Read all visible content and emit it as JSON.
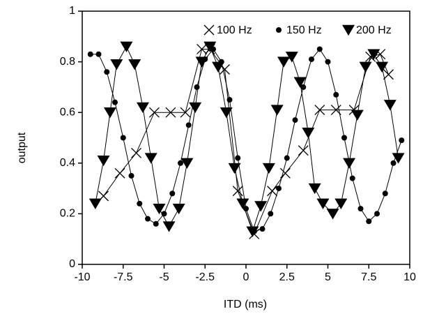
{
  "chart_data": {
    "type": "line",
    "xlabel": "ITD (ms)",
    "ylabel": "output",
    "xlim": [
      -10,
      10
    ],
    "xticks": [
      -10,
      -7.5,
      -5,
      -2.5,
      0,
      2.5,
      5,
      7.5,
      10
    ],
    "ylim": [
      0,
      1
    ],
    "yticks": [
      0,
      0.2,
      0.4,
      0.6,
      0.8,
      1
    ],
    "legend": "top-right",
    "series": [
      {
        "name": "100 Hz",
        "color": "#000000",
        "marker": "x",
        "x": [
          -8.7,
          -7.7,
          -6.7,
          -5.6,
          -4.6,
          -3.7,
          -2.7,
          -2.2,
          -1.3,
          -0.5,
          0.5,
          1.6,
          2.4,
          3.5,
          4.5,
          5.5,
          6.6,
          7.6,
          8.2,
          8.7
        ],
        "values": [
          0.27,
          0.36,
          0.44,
          0.6,
          0.6,
          0.6,
          0.85,
          0.85,
          0.77,
          0.29,
          0.12,
          0.29,
          0.36,
          0.45,
          0.61,
          0.61,
          0.61,
          0.82,
          0.83,
          0.75
        ]
      },
      {
        "name": "150 Hz",
        "color": "#000000",
        "marker": "o",
        "x": [
          -9.5,
          -9,
          -8.5,
          -8,
          -7.5,
          -7,
          -6.5,
          -6,
          -5.5,
          -5,
          -4.5,
          -4,
          -3.5,
          -3,
          -2.5,
          -2,
          -1.5,
          -1,
          -0.5,
          0,
          0.5,
          1,
          1.5,
          2,
          2.5,
          3,
          3.5,
          4,
          4.5,
          5,
          5.5,
          6,
          6.5,
          7,
          7.5,
          8,
          8.5,
          9,
          9.5
        ],
        "values": [
          0.83,
          0.83,
          0.76,
          0.64,
          0.5,
          0.35,
          0.24,
          0.18,
          0.16,
          0.2,
          0.28,
          0.4,
          0.55,
          0.7,
          0.81,
          0.85,
          0.8,
          0.65,
          0.42,
          0.22,
          0.13,
          0.14,
          0.2,
          0.3,
          0.42,
          0.57,
          0.7,
          0.81,
          0.85,
          0.8,
          0.67,
          0.5,
          0.34,
          0.22,
          0.17,
          0.2,
          0.28,
          0.4,
          0.49
        ]
      },
      {
        "name": "200 Hz",
        "color": "#000000",
        "marker": "v",
        "x": [
          -9.2,
          -8.7,
          -8.3,
          -7.9,
          -7.3,
          -6.8,
          -6.3,
          -5.8,
          -5.3,
          -4.7,
          -4.1,
          -3.6,
          -3.1,
          -2.7,
          -2.2,
          -1.7,
          -1.2,
          -0.7,
          -0.2,
          0.4,
          0.9,
          1.4,
          1.9,
          2.3,
          2.8,
          3.3,
          3.8,
          4.2,
          4.7,
          5.3,
          5.8,
          6.3,
          6.8,
          7.3,
          7.8,
          8.3,
          8.8,
          9.3
        ],
        "values": [
          0.24,
          0.41,
          0.6,
          0.79,
          0.86,
          0.79,
          0.62,
          0.42,
          0.22,
          0.15,
          0.22,
          0.4,
          0.62,
          0.8,
          0.86,
          0.78,
          0.6,
          0.38,
          0.24,
          0.13,
          0.23,
          0.38,
          0.61,
          0.8,
          0.82,
          0.72,
          0.52,
          0.3,
          0.24,
          0.2,
          0.24,
          0.4,
          0.59,
          0.78,
          0.83,
          0.78,
          0.63,
          0.42
        ]
      }
    ]
  }
}
